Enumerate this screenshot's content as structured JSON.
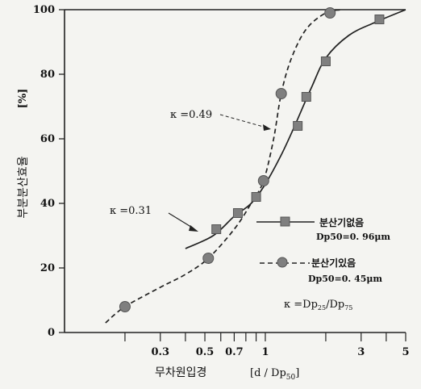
{
  "chart_data": {
    "type": "line",
    "xscale": "log",
    "xlim": [
      0.1,
      5
    ],
    "ylim": [
      0,
      100
    ],
    "xlabel": "무차원입경",
    "xlabel_unit_html": "[d / Dp50]",
    "ylabel": "부분분산효율",
    "ylabel_unit": "[%]",
    "x_ticks": [
      0.3,
      0.5,
      0.7,
      1,
      3,
      5
    ],
    "x_tick_labels": [
      "0.3",
      "0.5",
      "0.7",
      "1",
      "3",
      "5"
    ],
    "x_minor_ticks": [
      0.2,
      0.3,
      0.4,
      0.5,
      0.6,
      0.7,
      0.8,
      0.9,
      1,
      2,
      3,
      4,
      5
    ],
    "y_ticks": [
      0,
      20,
      40,
      60,
      80,
      100
    ],
    "y_tick_labels": [
      "0",
      "20",
      "40",
      "60",
      "80",
      "100"
    ],
    "series": [
      {
        "name": "분산기없음",
        "sub": "Dp50=0. 96μm",
        "marker": "square",
        "line": "solid",
        "points": [
          {
            "x": 0.57,
            "y": 32
          },
          {
            "x": 0.73,
            "y": 37
          },
          {
            "x": 0.9,
            "y": 42
          },
          {
            "x": 1.45,
            "y": 64
          },
          {
            "x": 1.6,
            "y": 73
          },
          {
            "x": 2.0,
            "y": 84
          },
          {
            "x": 3.7,
            "y": 97
          }
        ],
        "curve": [
          {
            "x": 0.4,
            "y": 26
          },
          {
            "x": 0.55,
            "y": 30
          },
          {
            "x": 0.7,
            "y": 36
          },
          {
            "x": 0.85,
            "y": 40
          },
          {
            "x": 1.0,
            "y": 46
          },
          {
            "x": 1.2,
            "y": 55
          },
          {
            "x": 1.4,
            "y": 64
          },
          {
            "x": 1.7,
            "y": 76
          },
          {
            "x": 2.0,
            "y": 85
          },
          {
            "x": 2.6,
            "y": 92
          },
          {
            "x": 3.5,
            "y": 96
          },
          {
            "x": 5.0,
            "y": 100
          }
        ]
      },
      {
        "name": "분산기있음",
        "sub": "Dp50=0. 45μm",
        "marker": "circle",
        "line": "dashed",
        "points": [
          {
            "x": 0.2,
            "y": 8
          },
          {
            "x": 0.52,
            "y": 23
          },
          {
            "x": 0.98,
            "y": 47
          },
          {
            "x": 1.2,
            "y": 74
          },
          {
            "x": 2.1,
            "y": 99
          }
        ],
        "curve": [
          {
            "x": 0.16,
            "y": 3
          },
          {
            "x": 0.2,
            "y": 8
          },
          {
            "x": 0.3,
            "y": 14
          },
          {
            "x": 0.4,
            "y": 18
          },
          {
            "x": 0.52,
            "y": 23
          },
          {
            "x": 0.7,
            "y": 32
          },
          {
            "x": 0.85,
            "y": 40
          },
          {
            "x": 0.98,
            "y": 47
          },
          {
            "x": 1.1,
            "y": 60
          },
          {
            "x": 1.2,
            "y": 74
          },
          {
            "x": 1.35,
            "y": 85
          },
          {
            "x": 1.6,
            "y": 94
          },
          {
            "x": 2.0,
            "y": 99
          },
          {
            "x": 2.4,
            "y": 100
          }
        ]
      }
    ],
    "annotations": [
      {
        "name": "kappa-049-label",
        "text": "κ =0.49"
      },
      {
        "name": "kappa-031-label",
        "text": "κ =0.31"
      },
      {
        "name": "kappa-definition",
        "text": "κ =Dp25/Dp75"
      }
    ],
    "colors": {
      "line": "#222222",
      "marker": "#7f7f7f",
      "marker_edge": "#555555",
      "background": "#f4f4f1"
    }
  }
}
